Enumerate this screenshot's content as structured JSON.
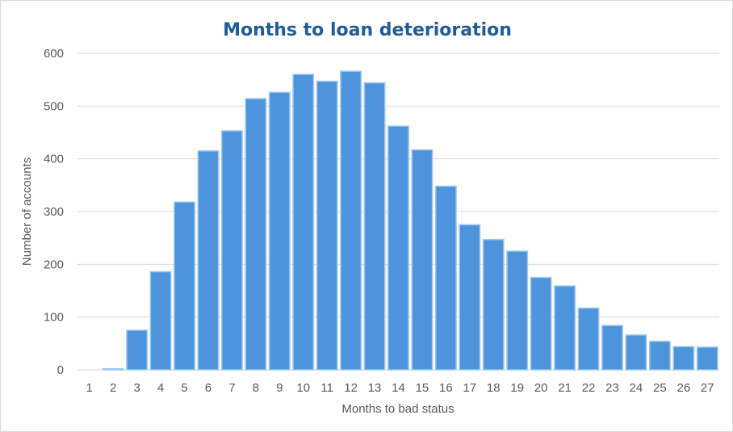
{
  "chart_data": {
    "type": "bar",
    "title": "Months to loan deterioration",
    "xlabel": "Months to bad status",
    "ylabel": "Number of accounts",
    "categories": [
      "1",
      "2",
      "3",
      "4",
      "5",
      "6",
      "7",
      "8",
      "9",
      "10",
      "11",
      "12",
      "13",
      "14",
      "15",
      "16",
      "17",
      "18",
      "19",
      "20",
      "21",
      "22",
      "23",
      "24",
      "25",
      "26",
      "27"
    ],
    "values": [
      0,
      2,
      75,
      186,
      318,
      415,
      453,
      514,
      526,
      560,
      547,
      566,
      544,
      462,
      417,
      348,
      275,
      247,
      225,
      175,
      159,
      117,
      84,
      66,
      54,
      44,
      43
    ],
    "ylim": [
      0,
      600
    ],
    "yticks": [
      0,
      100,
      200,
      300,
      400,
      500,
      600
    ],
    "grid": true,
    "legend": "none"
  },
  "colors": {
    "bar_fill": "#4d94dc",
    "bar_stroke": "#9cc8f2",
    "title": "#1f5c99",
    "gridline": "#d9d9d9",
    "text": "#595959"
  }
}
